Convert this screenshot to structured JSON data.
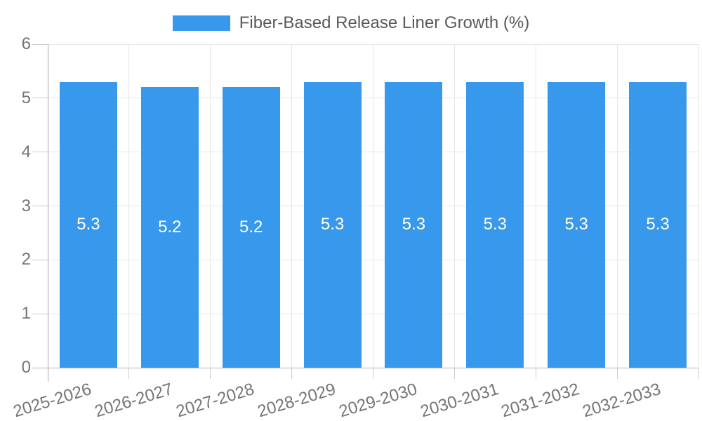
{
  "chart_data": {
    "type": "bar",
    "title": "Fiber-Based Release Liner Growth (%)",
    "legend": [
      {
        "label": "Fiber-Based Release Liner Growth (%)",
        "color": "#3899ec"
      }
    ],
    "legend_position": "top",
    "categories": [
      "2025-2026",
      "2026-2027",
      "2027-2028",
      "2028-2029",
      "2029-2030",
      "2030-2031",
      "2031-2032",
      "2032-2033"
    ],
    "values": [
      5.3,
      5.2,
      5.2,
      5.3,
      5.3,
      5.3,
      5.3,
      5.3
    ],
    "value_labels": [
      "5.3",
      "5.2",
      "5.2",
      "5.3",
      "5.3",
      "5.3",
      "5.3",
      "5.3"
    ],
    "xlabel": "",
    "ylabel": "",
    "ylim": [
      0,
      6
    ],
    "yticks": [
      0,
      1,
      2,
      3,
      4,
      5,
      6
    ],
    "ytick_labels": [
      "0",
      "1",
      "2",
      "3",
      "4",
      "5",
      "6"
    ],
    "grid": true,
    "bar_color": "#3899ec",
    "bar_label_color": "#ffffff"
  },
  "colors": {
    "bar": "#3899ec",
    "grid": "#e6e6e6",
    "tick": "#cccccc",
    "axis_y": "#a8a8a8",
    "axis_x": "#b3b3b3",
    "tick_text": "#757575",
    "title_text": "#595959",
    "background": "#ffffff"
  }
}
